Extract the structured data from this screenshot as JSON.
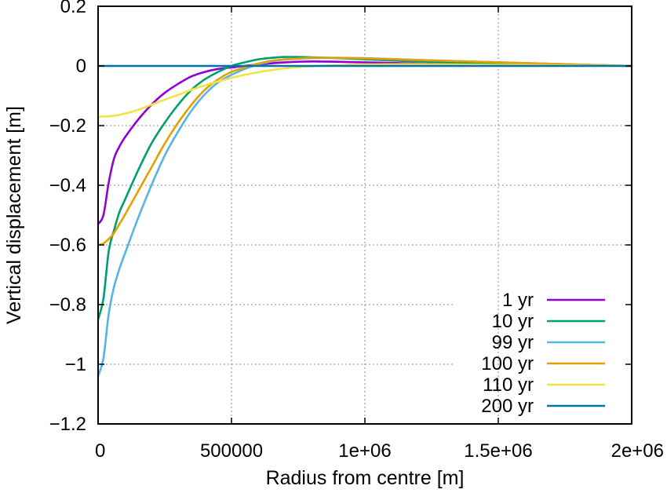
{
  "chart_data": {
    "type": "line",
    "title": "",
    "xlabel": "Radius from centre [m]",
    "ylabel": "Vertical displacement [m]",
    "xlim": [
      0,
      2000000
    ],
    "ylim": [
      -1.2,
      0.2
    ],
    "xticks": [
      0,
      500000,
      1000000,
      1500000,
      2000000
    ],
    "xtick_labels": [
      "0",
      "500000",
      "1e+06",
      "1.5e+06",
      "2e+06"
    ],
    "yticks": [
      0.2,
      0,
      -0.2,
      -0.4,
      -0.6,
      -0.8,
      -1,
      -1.2
    ],
    "ytick_labels": [
      "0.2",
      "0",
      "−0.2",
      "−0.4",
      "−0.6",
      "−0.8",
      "−1",
      "−1.2"
    ],
    "grid": true,
    "legend_position": "bottom-right",
    "series": [
      {
        "name": "1 yr",
        "color": "#9400d3",
        "x": [
          0,
          20000,
          40000,
          60000,
          80000,
          100000,
          150000,
          200000,
          250000,
          300000,
          350000,
          400000,
          450000,
          500000,
          550000,
          600000,
          700000,
          800000,
          900000,
          1000000,
          1200000,
          1500000,
          2000000
        ],
        "y": [
          -0.53,
          -0.5,
          -0.39,
          -0.31,
          -0.27,
          -0.24,
          -0.18,
          -0.13,
          -0.09,
          -0.06,
          -0.035,
          -0.02,
          -0.01,
          -0.005,
          0.0,
          0.005,
          0.012,
          0.015,
          0.014,
          0.012,
          0.008,
          0.004,
          0.0
        ]
      },
      {
        "name": "10 yr",
        "color": "#009e73",
        "x": [
          0,
          20000,
          40000,
          60000,
          80000,
          100000,
          150000,
          200000,
          250000,
          300000,
          350000,
          400000,
          450000,
          500000,
          550000,
          600000,
          650000,
          700000,
          750000,
          800000,
          900000,
          1000000,
          1200000,
          1500000,
          2000000
        ],
        "y": [
          -0.85,
          -0.78,
          -0.62,
          -0.55,
          -0.49,
          -0.45,
          -0.35,
          -0.26,
          -0.19,
          -0.13,
          -0.08,
          -0.045,
          -0.02,
          0.0,
          0.012,
          0.022,
          0.027,
          0.03,
          0.03,
          0.029,
          0.026,
          0.022,
          0.015,
          0.008,
          0.0
        ]
      },
      {
        "name": "99 yr",
        "color": "#56b4e9",
        "x": [
          0,
          20000,
          40000,
          60000,
          80000,
          100000,
          150000,
          200000,
          250000,
          300000,
          350000,
          400000,
          450000,
          500000,
          550000,
          600000,
          650000,
          700000,
          800000,
          900000,
          1000000,
          1200000,
          1500000,
          2000000
        ],
        "y": [
          -1.04,
          -0.98,
          -0.83,
          -0.74,
          -0.68,
          -0.63,
          -0.51,
          -0.4,
          -0.3,
          -0.22,
          -0.15,
          -0.095,
          -0.055,
          -0.03,
          -0.01,
          0.005,
          0.015,
          0.021,
          0.026,
          0.027,
          0.026,
          0.02,
          0.012,
          0.0
        ]
      },
      {
        "name": "100 yr",
        "color": "#e69f00",
        "x": [
          0,
          20000,
          40000,
          60000,
          80000,
          100000,
          150000,
          200000,
          250000,
          300000,
          350000,
          400000,
          450000,
          500000,
          550000,
          600000,
          650000,
          700000,
          800000,
          900000,
          1000000,
          1200000,
          1500000,
          2000000
        ],
        "y": [
          -0.6,
          -0.595,
          -0.58,
          -0.56,
          -0.53,
          -0.5,
          -0.42,
          -0.34,
          -0.26,
          -0.19,
          -0.13,
          -0.08,
          -0.045,
          -0.02,
          -0.005,
          0.008,
          0.017,
          0.022,
          0.027,
          0.027,
          0.025,
          0.02,
          0.012,
          0.0
        ]
      },
      {
        "name": "110 yr",
        "color": "#f0e442",
        "x": [
          0,
          50000,
          100000,
          150000,
          200000,
          250000,
          300000,
          350000,
          400000,
          450000,
          500000,
          550000,
          600000,
          650000,
          700000,
          750000,
          800000,
          900000,
          1000000,
          1200000,
          1500000,
          2000000
        ],
        "y": [
          -0.17,
          -0.168,
          -0.16,
          -0.147,
          -0.13,
          -0.113,
          -0.097,
          -0.08,
          -0.065,
          -0.052,
          -0.04,
          -0.03,
          -0.021,
          -0.014,
          -0.008,
          -0.004,
          -0.001,
          0.003,
          0.005,
          0.006,
          0.004,
          0.0
        ]
      },
      {
        "name": "200 yr",
        "color": "#0072b2",
        "x": [
          0,
          500000,
          1000000,
          1500000,
          2000000
        ],
        "y": [
          0.0,
          0.0,
          0.0,
          0.0,
          0.0
        ]
      }
    ]
  }
}
